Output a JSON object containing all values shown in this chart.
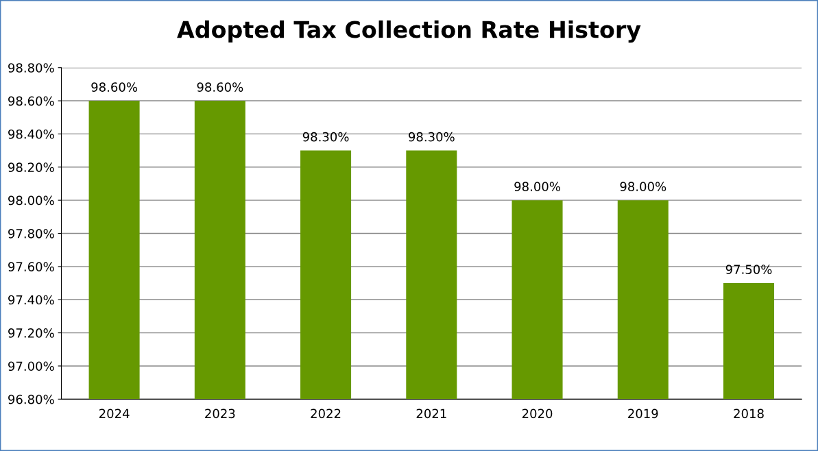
{
  "chart_data": {
    "type": "bar",
    "title": "Adopted Tax Collection Rate History",
    "categories": [
      "2024",
      "2023",
      "2022",
      "2021",
      "2020",
      "2019",
      "2018"
    ],
    "values": [
      98.6,
      98.6,
      98.3,
      98.3,
      98.0,
      98.0,
      97.5
    ],
    "value_labels": [
      "98.60%",
      "98.60%",
      "98.30%",
      "98.30%",
      "98.00%",
      "98.00%",
      "97.50%"
    ],
    "color": "#669900",
    "ylim": [
      96.8,
      98.8
    ],
    "yticks": [
      {
        "value": 96.8,
        "label": "96.80%"
      },
      {
        "value": 97.0,
        "label": "97.00%"
      },
      {
        "value": 97.2,
        "label": "97.20%"
      },
      {
        "value": 97.4,
        "label": "97.40%"
      },
      {
        "value": 97.6,
        "label": "97.60%"
      },
      {
        "value": 97.8,
        "label": "97.80%"
      },
      {
        "value": 98.0,
        "label": "98.00%"
      },
      {
        "value": 98.2,
        "label": "98.20%"
      },
      {
        "value": 98.4,
        "label": "98.40%"
      },
      {
        "value": 98.6,
        "label": "98.60%"
      },
      {
        "value": 98.8,
        "label": "98.80%"
      }
    ],
    "grid": "y",
    "legend": false
  }
}
